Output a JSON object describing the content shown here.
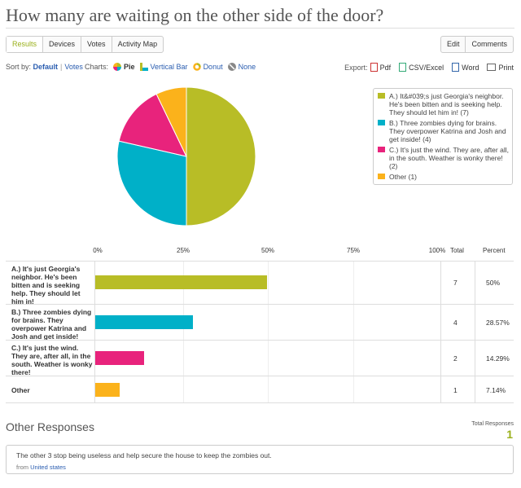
{
  "title": "How many are waiting on the other side of the door?",
  "tabs_left": [
    "Results",
    "Devices",
    "Votes",
    "Activity Map"
  ],
  "tabs_right": [
    "Edit",
    "Comments"
  ],
  "sort": {
    "label": "Sort by:",
    "default": "Default",
    "votes": "Votes"
  },
  "charts": {
    "label": "Charts:",
    "options": [
      "Pie",
      "Vertical Bar",
      "Donut",
      "None"
    ]
  },
  "export": {
    "label": "Export:",
    "options": [
      "Pdf",
      "CSV/Excel",
      "Word",
      "Print"
    ]
  },
  "colors": {
    "a": "#b8bd26",
    "b": "#00b0c8",
    "c": "#e8237c",
    "other": "#fbb21b",
    "accent": "#9ab01b",
    "link": "#2a5db0"
  },
  "legend": [
    "A.) It&#039;s just Georgia's neighbor. He's been bitten and is seeking help. They should let him in! (7)",
    "B.) Three zombies dying for brains. They overpower Katrina and Josh and get inside! (4)",
    "C.) It's just the wind. They are, after all, in the south. Weather is wonky there! (2)",
    "Other (1)"
  ],
  "table": {
    "ticks": [
      "0%",
      "25%",
      "50%",
      "75%",
      "100%"
    ],
    "total_header": "Total",
    "percent_header": "Percent",
    "rows": [
      {
        "label": "A.) It's just Georgia's neighbor. He's been bitten and is seeking help. They should let him in!",
        "count": "7",
        "percent": "50%"
      },
      {
        "label": "B.) Three zombies dying for brains. They overpower Katrina and Josh and get inside!",
        "count": "4",
        "percent": "28.57%"
      },
      {
        "label": "C.) It's just the wind. They are, after all, in the south. Weather is wonky there!",
        "count": "2",
        "percent": "14.29%"
      },
      {
        "label": "Other",
        "count": "1",
        "percent": "7.14%"
      }
    ]
  },
  "chart_data": {
    "type": "pie",
    "categories": [
      "A",
      "B",
      "C",
      "Other"
    ],
    "values": [
      7,
      4,
      2,
      1
    ],
    "percent": [
      50,
      28.57,
      14.29,
      7.14
    ]
  },
  "other_responses": {
    "heading": "Other Responses",
    "total_label": "Total Responses",
    "total": "1",
    "text": "The other 3 stop being useless and help secure the house to keep the zombies out.",
    "from_label": "from",
    "from_place": "United states"
  }
}
